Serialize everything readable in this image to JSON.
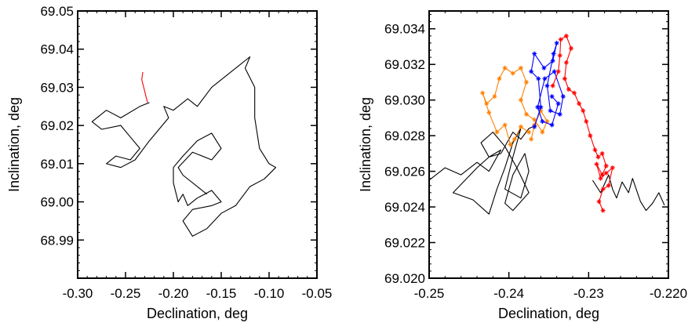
{
  "chart_data": [
    {
      "type": "line",
      "xlabel": "Declination, deg",
      "ylabel": "Inclination, deg",
      "xlim": [
        -0.3,
        -0.05
      ],
      "ylim": [
        68.98,
        69.05
      ],
      "xticks": [
        -0.3,
        -0.25,
        -0.2,
        -0.15,
        -0.1,
        -0.05
      ],
      "xtick_labels": [
        "-0.30",
        "-0.25",
        "-0.20",
        "-0.15",
        "-0.10",
        "-0.05"
      ],
      "yticks": [
        68.99,
        69.0,
        69.01,
        69.02,
        69.03,
        69.04,
        69.05
      ],
      "ytick_labels": [
        "68.99",
        "69.00",
        "69.01",
        "69.02",
        "69.03",
        "69.04",
        "69.05"
      ],
      "series": [
        {
          "color": "#000000",
          "x": [
            -0.225,
            -0.235,
            -0.255,
            -0.27,
            -0.285,
            -0.275,
            -0.255,
            -0.245,
            -0.235,
            -0.245,
            -0.26,
            -0.27,
            -0.255,
            -0.24,
            -0.225,
            -0.215,
            -0.205,
            -0.21,
            -0.2,
            -0.185,
            -0.175,
            -0.16,
            -0.145,
            -0.13,
            -0.12,
            -0.125,
            -0.115,
            -0.115,
            -0.11,
            -0.1,
            -0.093,
            -0.105,
            -0.12,
            -0.135,
            -0.15,
            -0.165,
            -0.18,
            -0.19,
            -0.18,
            -0.16,
            -0.15,
            -0.16,
            -0.175,
            -0.185,
            -0.19,
            -0.195,
            -0.2,
            -0.2,
            -0.19,
            -0.175,
            -0.16,
            -0.15,
            -0.16,
            -0.18,
            -0.195,
            -0.19,
            -0.175,
            -0.165
          ],
          "y": [
            69.026,
            69.025,
            69.022,
            69.024,
            69.021,
            69.019,
            69.02,
            69.017,
            69.014,
            69.011,
            69.012,
            69.01,
            69.009,
            69.011,
            69.016,
            69.019,
            69.022,
            69.025,
            69.024,
            69.027,
            69.025,
            69.03,
            69.033,
            69.036,
            69.038,
            69.035,
            69.03,
            69.022,
            69.014,
            69.01,
            69.009,
            69.006,
            69.004,
            68.999,
            68.997,
            68.993,
            68.991,
            68.995,
            68.998,
            68.999,
            69.0,
            69.003,
            69.001,
            68.999,
            69.002,
            69.0,
            69.005,
            69.009,
            69.012,
            69.016,
            69.018,
            69.014,
            69.011,
            69.013,
            69.009,
            69.007,
            69.004,
            69.002
          ]
        },
        {
          "color": "#ff0000",
          "x": [
            -0.227,
            -0.229,
            -0.231,
            -0.233,
            -0.232
          ],
          "y": [
            69.026,
            69.028,
            69.03,
            69.032,
            69.034
          ]
        }
      ]
    },
    {
      "type": "line",
      "xlabel": "Declination, deg",
      "ylabel": "Inclination, deg",
      "xlim": [
        -0.25,
        -0.22
      ],
      "ylim": [
        69.02,
        69.035
      ],
      "xticks": [
        -0.25,
        -0.24,
        -0.23,
        -0.22
      ],
      "xtick_labels": [
        "-0.25",
        "-0.24",
        "-0.23",
        "-0.220"
      ],
      "yticks": [
        69.02,
        69.022,
        69.024,
        69.026,
        69.028,
        69.03,
        69.032,
        69.034
      ],
      "ytick_labels": [
        "69.020",
        "69.022",
        "69.024",
        "69.026",
        "69.028",
        "69.030",
        "69.032",
        "69.034"
      ],
      "series": [
        {
          "color": "#000000",
          "x": [
            -0.25,
            -0.248,
            -0.246,
            -0.244,
            -0.2425,
            -0.241,
            -0.2425,
            -0.244,
            -0.2455,
            -0.247,
            -0.2445,
            -0.2425,
            -0.2415,
            -0.2405,
            -0.2395,
            -0.2385,
            -0.2395,
            -0.2405,
            -0.2385,
            -0.2375,
            -0.238,
            -0.2395,
            -0.2405,
            -0.2395,
            -0.2375,
            -0.239,
            -0.2405,
            -0.242,
            -0.2435,
            -0.2425,
            -0.241,
            -0.2395,
            -0.2385,
            -0.2375,
            -0.2365
          ],
          "y": [
            69.0255,
            69.0262,
            69.0258,
            69.0265,
            69.026,
            69.0272,
            69.0268,
            69.0262,
            69.0255,
            69.0248,
            69.0244,
            69.0236,
            69.025,
            69.0262,
            69.0276,
            69.0284,
            69.0268,
            69.025,
            69.0245,
            69.026,
            69.027,
            69.0258,
            69.0242,
            69.0238,
            69.0248,
            69.0262,
            69.0274,
            69.0282,
            69.0276,
            69.0268,
            69.027,
            69.0282,
            69.0278,
            69.0284,
            69.0286
          ]
        },
        {
          "color": "#000000",
          "x": [
            -0.2295,
            -0.2285,
            -0.2275,
            -0.227,
            -0.2265,
            -0.2258,
            -0.225,
            -0.2245,
            -0.2235,
            -0.2228,
            -0.222,
            -0.2212,
            -0.2205
          ],
          "y": [
            69.0255,
            69.0248,
            69.0258,
            69.025,
            69.0245,
            69.0254,
            69.0248,
            69.0256,
            69.0243,
            69.0238,
            69.0242,
            69.0248,
            69.0241
          ]
        },
        {
          "color": "#ff8000",
          "x": [
            -0.2375,
            -0.2385,
            -0.2393,
            -0.2398,
            -0.2405,
            -0.2415,
            -0.2425,
            -0.2433,
            -0.2428,
            -0.2418,
            -0.2412,
            -0.2405,
            -0.2395,
            -0.2385,
            -0.2378,
            -0.2385,
            -0.2378,
            -0.2368,
            -0.2358,
            -0.2352,
            -0.236,
            -0.2368,
            -0.2372
          ],
          "y": [
            69.0282,
            69.0285,
            69.0278,
            69.0275,
            69.0286,
            69.0282,
            69.0293,
            69.0304,
            69.0298,
            69.0302,
            69.0312,
            69.0318,
            69.0315,
            69.0318,
            69.031,
            69.03,
            69.0292,
            69.0289,
            69.0282,
            69.0288,
            69.0294,
            69.0286,
            69.0278
          ]
        },
        {
          "color": "#0000ff",
          "x": [
            -0.2368,
            -0.236,
            -0.2363,
            -0.2372,
            -0.2368,
            -0.2356,
            -0.2345,
            -0.234,
            -0.2344,
            -0.2352,
            -0.2348,
            -0.2336,
            -0.2332,
            -0.2343,
            -0.2355,
            -0.2364,
            -0.2358,
            -0.2346,
            -0.2338,
            -0.2346
          ],
          "y": [
            69.0285,
            69.0296,
            69.0312,
            69.0316,
            69.0326,
            69.0318,
            69.0322,
            69.0332,
            69.0326,
            69.0308,
            69.0294,
            69.0292,
            69.0302,
            69.0316,
            69.0312,
            69.0296,
            69.0288,
            69.0286,
            69.0298,
            69.0302
          ]
        },
        {
          "color": "#ff0000",
          "x": [
            -0.2345,
            -0.2338,
            -0.2336,
            -0.2335,
            -0.2328,
            -0.2322,
            -0.2328,
            -0.233,
            -0.2325,
            -0.2318,
            -0.2312,
            -0.2307,
            -0.2303,
            -0.2298,
            -0.2292,
            -0.2288,
            -0.2283,
            -0.2278,
            -0.2283,
            -0.229,
            -0.2285,
            -0.2278,
            -0.227,
            -0.2275,
            -0.2282,
            -0.2287,
            -0.2282
          ],
          "y": [
            69.0308,
            69.0316,
            69.0325,
            69.0334,
            69.0336,
            69.0329,
            69.0321,
            69.0312,
            69.0306,
            69.0304,
            69.0298,
            69.0294,
            69.0288,
            69.028,
            69.0272,
            69.0268,
            69.027,
            69.0263,
            69.0258,
            69.0264,
            69.0256,
            69.0259,
            69.0262,
            69.0252,
            69.025,
            69.0243,
            69.0238
          ]
        }
      ]
    }
  ]
}
